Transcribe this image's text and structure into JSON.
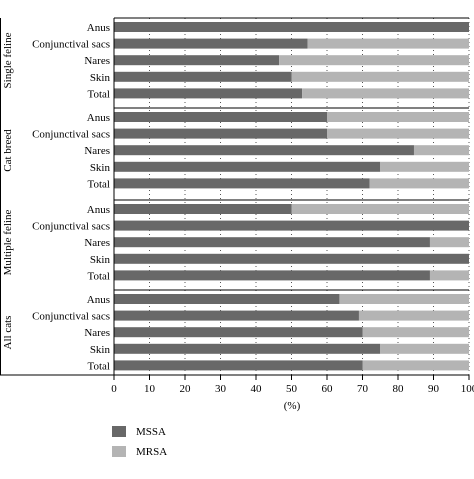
{
  "chart_data": {
    "type": "bar",
    "orientation": "horizontal",
    "stacked": true,
    "xlabel": "(%)",
    "xlim": [
      0,
      100
    ],
    "xticks": [
      "0",
      "10",
      "20",
      "30",
      "40",
      "50",
      "60",
      "70",
      "80",
      "90",
      "100"
    ],
    "grid": "vertical dotted",
    "legend_position": "bottom-left",
    "series": [
      {
        "name": "MSSA",
        "color": "#686868"
      },
      {
        "name": "MRSA",
        "color": "#b4b4b4"
      }
    ],
    "groups": [
      {
        "name": "Single feline",
        "rows": [
          {
            "label": "Anus",
            "mssa": 100,
            "mrsa": 0
          },
          {
            "label": "Conjunctival sacs",
            "mssa": 54.5,
            "mrsa": 45.5
          },
          {
            "label": "Nares",
            "mssa": 46.5,
            "mrsa": 53.5
          },
          {
            "label": "Skin",
            "mssa": 50,
            "mrsa": 50
          },
          {
            "label": "Total",
            "mssa": 53,
            "mrsa": 47
          }
        ]
      },
      {
        "name": "Cat breed",
        "rows": [
          {
            "label": "Anus",
            "mssa": 60,
            "mrsa": 40
          },
          {
            "label": "Conjunctival sacs",
            "mssa": 60,
            "mrsa": 40
          },
          {
            "label": "Nares",
            "mssa": 84.5,
            "mrsa": 15.5
          },
          {
            "label": "Skin",
            "mssa": 75,
            "mrsa": 25
          },
          {
            "label": "Total",
            "mssa": 72,
            "mrsa": 28
          }
        ]
      },
      {
        "name": "Multiple feline",
        "rows": [
          {
            "label": "Anus",
            "mssa": 50,
            "mrsa": 50
          },
          {
            "label": "Conjunctival sacs",
            "mssa": 100,
            "mrsa": 0
          },
          {
            "label": "Nares",
            "mssa": 89,
            "mrsa": 11
          },
          {
            "label": "Skin",
            "mssa": 100,
            "mrsa": 0
          },
          {
            "label": "Total",
            "mssa": 89,
            "mrsa": 11
          }
        ]
      },
      {
        "name": "All cats",
        "rows": [
          {
            "label": "Anus",
            "mssa": 63.5,
            "mrsa": 36.5
          },
          {
            "label": "Conjunctival sacs",
            "mssa": 69,
            "mrsa": 31
          },
          {
            "label": "Nares",
            "mssa": 70,
            "mrsa": 30
          },
          {
            "label": "Skin",
            "mssa": 75,
            "mrsa": 25
          },
          {
            "label": "Total",
            "mssa": 70,
            "mrsa": 30
          }
        ]
      }
    ]
  }
}
